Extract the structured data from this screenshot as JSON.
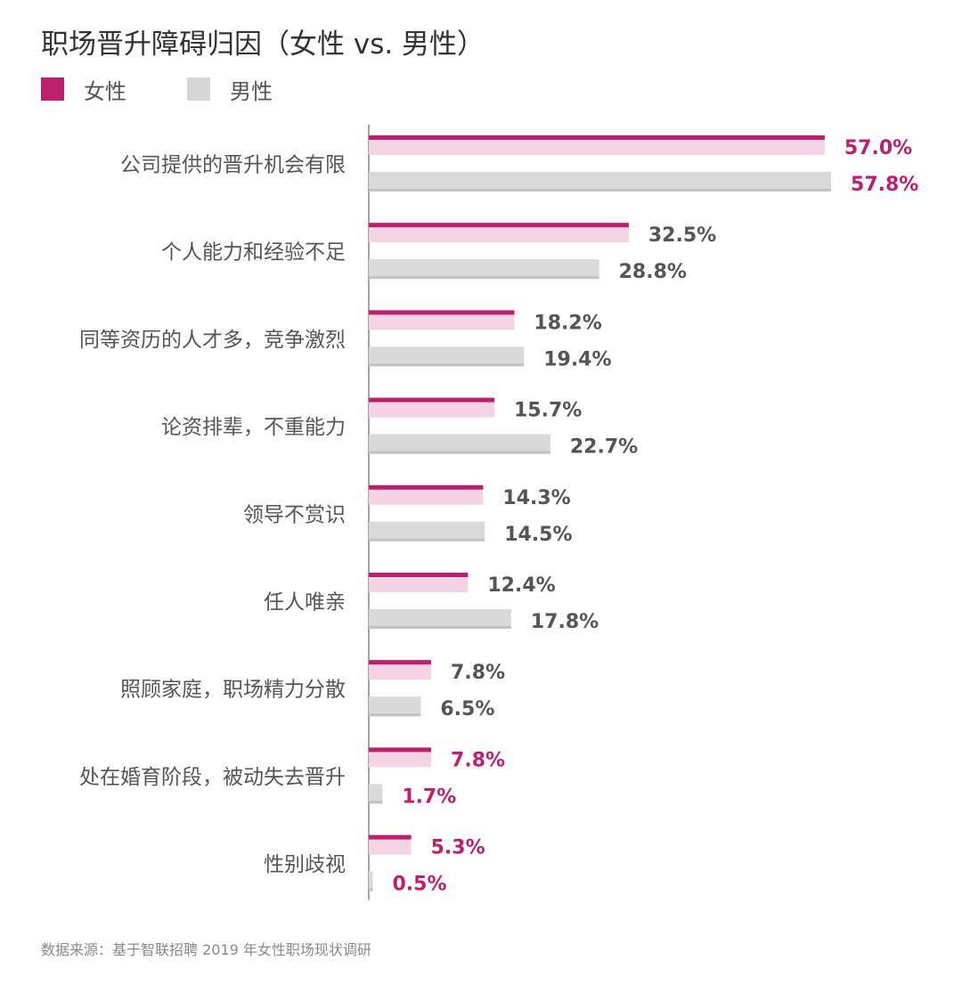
{
  "header": {
    "title": "职场晋升障碍归因（女性 vs. 男性）"
  },
  "legend": [
    {
      "label": "女性",
      "color": "#be1e6e"
    },
    {
      "label": "男性",
      "color": "#d7d7d7"
    }
  ],
  "footer": {
    "source": "数据来源：基于智联招聘 2019 年女性职场现状调研"
  },
  "colors": {
    "female_line": "#be1e6e",
    "female_bar": "#f3d3e4",
    "male_bar": "#d9d9d9",
    "label_dark": "#555555",
    "label_highlight": "#be1e6e",
    "axis": "#888888"
  },
  "chart_data": {
    "type": "bar",
    "orientation": "horizontal",
    "title": "职场晋升障碍归因（女性 vs. 男性）",
    "categories": [
      "公司提供的晋升机会有限",
      "个人能力和经验不足",
      "同等资历的人才多，竞争激烈",
      "论资排辈，不重能力",
      "领导不赏识",
      "任人唯亲",
      "照顾家庭，职场精力分散",
      "处在婚育阶段，被动失去晋升",
      "性别歧视"
    ],
    "series": [
      {
        "name": "女性",
        "values": [
          57.0,
          32.5,
          18.2,
          15.7,
          14.3,
          12.4,
          7.8,
          7.8,
          5.3
        ]
      },
      {
        "name": "男性",
        "values": [
          57.8,
          28.8,
          19.4,
          22.7,
          14.5,
          17.8,
          6.5,
          1.7,
          0.5
        ]
      }
    ],
    "value_labels": {
      "女性": [
        "57.0%",
        "32.5%",
        "18.2%",
        "15.7%",
        "14.3%",
        "12.4%",
        "7.8%",
        "7.8%",
        "5.3%"
      ],
      "男性": [
        "57.8%",
        "28.8%",
        "19.4%",
        "22.7%",
        "14.5%",
        "17.8%",
        "6.5%",
        "1.7%",
        "0.5%"
      ]
    },
    "highlighted_categories": [
      0,
      7,
      8
    ],
    "unit": "%",
    "xlim": [
      0,
      60
    ],
    "grid": false,
    "legend_position": "top-left"
  }
}
